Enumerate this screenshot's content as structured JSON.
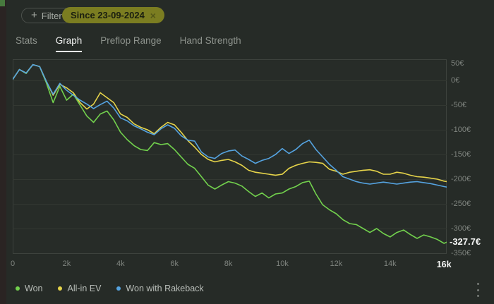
{
  "toolbar": {
    "filter_button": {
      "icon": "plus",
      "label": "Filter"
    },
    "filter_chip": {
      "label": "Since 23-09-2024",
      "close_icon": "×",
      "bg_color": "#7b7d21"
    }
  },
  "tabs": {
    "items": [
      {
        "label": "Stats",
        "active": false
      },
      {
        "label": "Graph",
        "active": true
      },
      {
        "label": "Preflop Range",
        "active": false
      },
      {
        "label": "Hand Strength",
        "active": false
      }
    ]
  },
  "chart_data": {
    "type": "line",
    "xlabel": "hands",
    "ylabel": "euros",
    "xlim": [
      0,
      16100
    ],
    "ylim": [
      -355,
      45
    ],
    "grid": "horizontal",
    "legend_position": "bottom-left",
    "x_ticks": [
      {
        "value": 0,
        "label": "0"
      },
      {
        "value": 2000,
        "label": "2k"
      },
      {
        "value": 4000,
        "label": "4k"
      },
      {
        "value": 6000,
        "label": "6k"
      },
      {
        "value": 8000,
        "label": "8k"
      },
      {
        "value": 10000,
        "label": "10k"
      },
      {
        "value": 12000,
        "label": "12k"
      },
      {
        "value": 14000,
        "label": "14k"
      },
      {
        "value": 16000,
        "label": "16k",
        "bold": true
      }
    ],
    "y_ticks": [
      {
        "value": 50,
        "label": "50€"
      },
      {
        "value": 0,
        "label": "0€"
      },
      {
        "value": -50,
        "label": "-50€"
      },
      {
        "value": -100,
        "label": "-100€"
      },
      {
        "value": -150,
        "label": "-150€"
      },
      {
        "value": -200,
        "label": "-200€"
      },
      {
        "value": -250,
        "label": "-250€"
      },
      {
        "value": -300,
        "label": "-300€"
      },
      {
        "value": -350,
        "label": "-350€"
      }
    ],
    "current_value": {
      "value": -327.7,
      "label": "-327.7€",
      "series": "Won"
    },
    "x": [
      0,
      250,
      500,
      750,
      1000,
      1250,
      1500,
      1750,
      2000,
      2250,
      2500,
      2750,
      3000,
      3250,
      3500,
      3750,
      4000,
      4250,
      4500,
      4750,
      5000,
      5250,
      5500,
      5750,
      6000,
      6250,
      6500,
      6750,
      7000,
      7250,
      7500,
      7750,
      8000,
      8250,
      8500,
      8750,
      9000,
      9250,
      9500,
      9750,
      10000,
      10250,
      10500,
      10750,
      11000,
      11250,
      11500,
      11750,
      12000,
      12250,
      12500,
      12750,
      13000,
      13250,
      13500,
      13750,
      14000,
      14250,
      14500,
      14750,
      15000,
      15250,
      15500,
      15750,
      16000,
      16100
    ],
    "series": [
      {
        "name": "Won",
        "color": "#72d14d",
        "values": [
          2,
          22,
          14,
          32,
          28,
          -5,
          -45,
          -12,
          -40,
          -28,
          -50,
          -72,
          -85,
          -68,
          -62,
          -80,
          -105,
          -120,
          -132,
          -140,
          -142,
          -126,
          -130,
          -128,
          -140,
          -155,
          -170,
          -178,
          -195,
          -212,
          -220,
          -212,
          -205,
          -208,
          -214,
          -225,
          -235,
          -228,
          -238,
          -230,
          -228,
          -220,
          -215,
          -207,
          -204,
          -230,
          -252,
          -262,
          -270,
          -282,
          -290,
          -292,
          -300,
          -308,
          -300,
          -310,
          -317,
          -308,
          -303,
          -312,
          -320,
          -313,
          -317,
          -322,
          -330,
          -327.7
        ]
      },
      {
        "name": "All-in EV",
        "color": "#e6d44a",
        "values": [
          2,
          22,
          15,
          32,
          28,
          -2,
          -30,
          -8,
          -15,
          -25,
          -45,
          -58,
          -48,
          -25,
          -35,
          -45,
          -68,
          -75,
          -88,
          -95,
          -100,
          -108,
          -95,
          -85,
          -90,
          -105,
          -122,
          -135,
          -150,
          -160,
          -165,
          -162,
          -160,
          -165,
          -172,
          -182,
          -186,
          -188,
          -190,
          -192,
          -190,
          -178,
          -172,
          -168,
          -165,
          -166,
          -168,
          -180,
          -184,
          -190,
          -186,
          -184,
          -182,
          -181,
          -184,
          -190,
          -190,
          -186,
          -188,
          -192,
          -195,
          -196,
          -198,
          -200,
          -204,
          -205
        ]
      },
      {
        "name": "Won with Rakeback",
        "color": "#55a3e0",
        "values": [
          2,
          22,
          15,
          32,
          28,
          -2,
          -28,
          -6,
          -20,
          -30,
          -40,
          -48,
          -57,
          -49,
          -42,
          -56,
          -76,
          -82,
          -92,
          -98,
          -105,
          -110,
          -98,
          -90,
          -97,
          -112,
          -121,
          -123,
          -145,
          -155,
          -158,
          -148,
          -143,
          -141,
          -153,
          -160,
          -168,
          -162,
          -158,
          -150,
          -138,
          -148,
          -140,
          -128,
          -121,
          -140,
          -155,
          -170,
          -182,
          -195,
          -200,
          -205,
          -208,
          -210,
          -208,
          -206,
          -208,
          -210,
          -208,
          -206,
          -205,
          -207,
          -209,
          -212,
          -215,
          -216
        ]
      }
    ]
  },
  "legend": {
    "items": [
      {
        "label": "Won",
        "color": "#72d14d"
      },
      {
        "label": "All-in EV",
        "color": "#e6d44a"
      },
      {
        "label": "Won with Rakeback",
        "color": "#55a3e0"
      }
    ]
  },
  "menu": {
    "icon": "kebab-vertical"
  }
}
